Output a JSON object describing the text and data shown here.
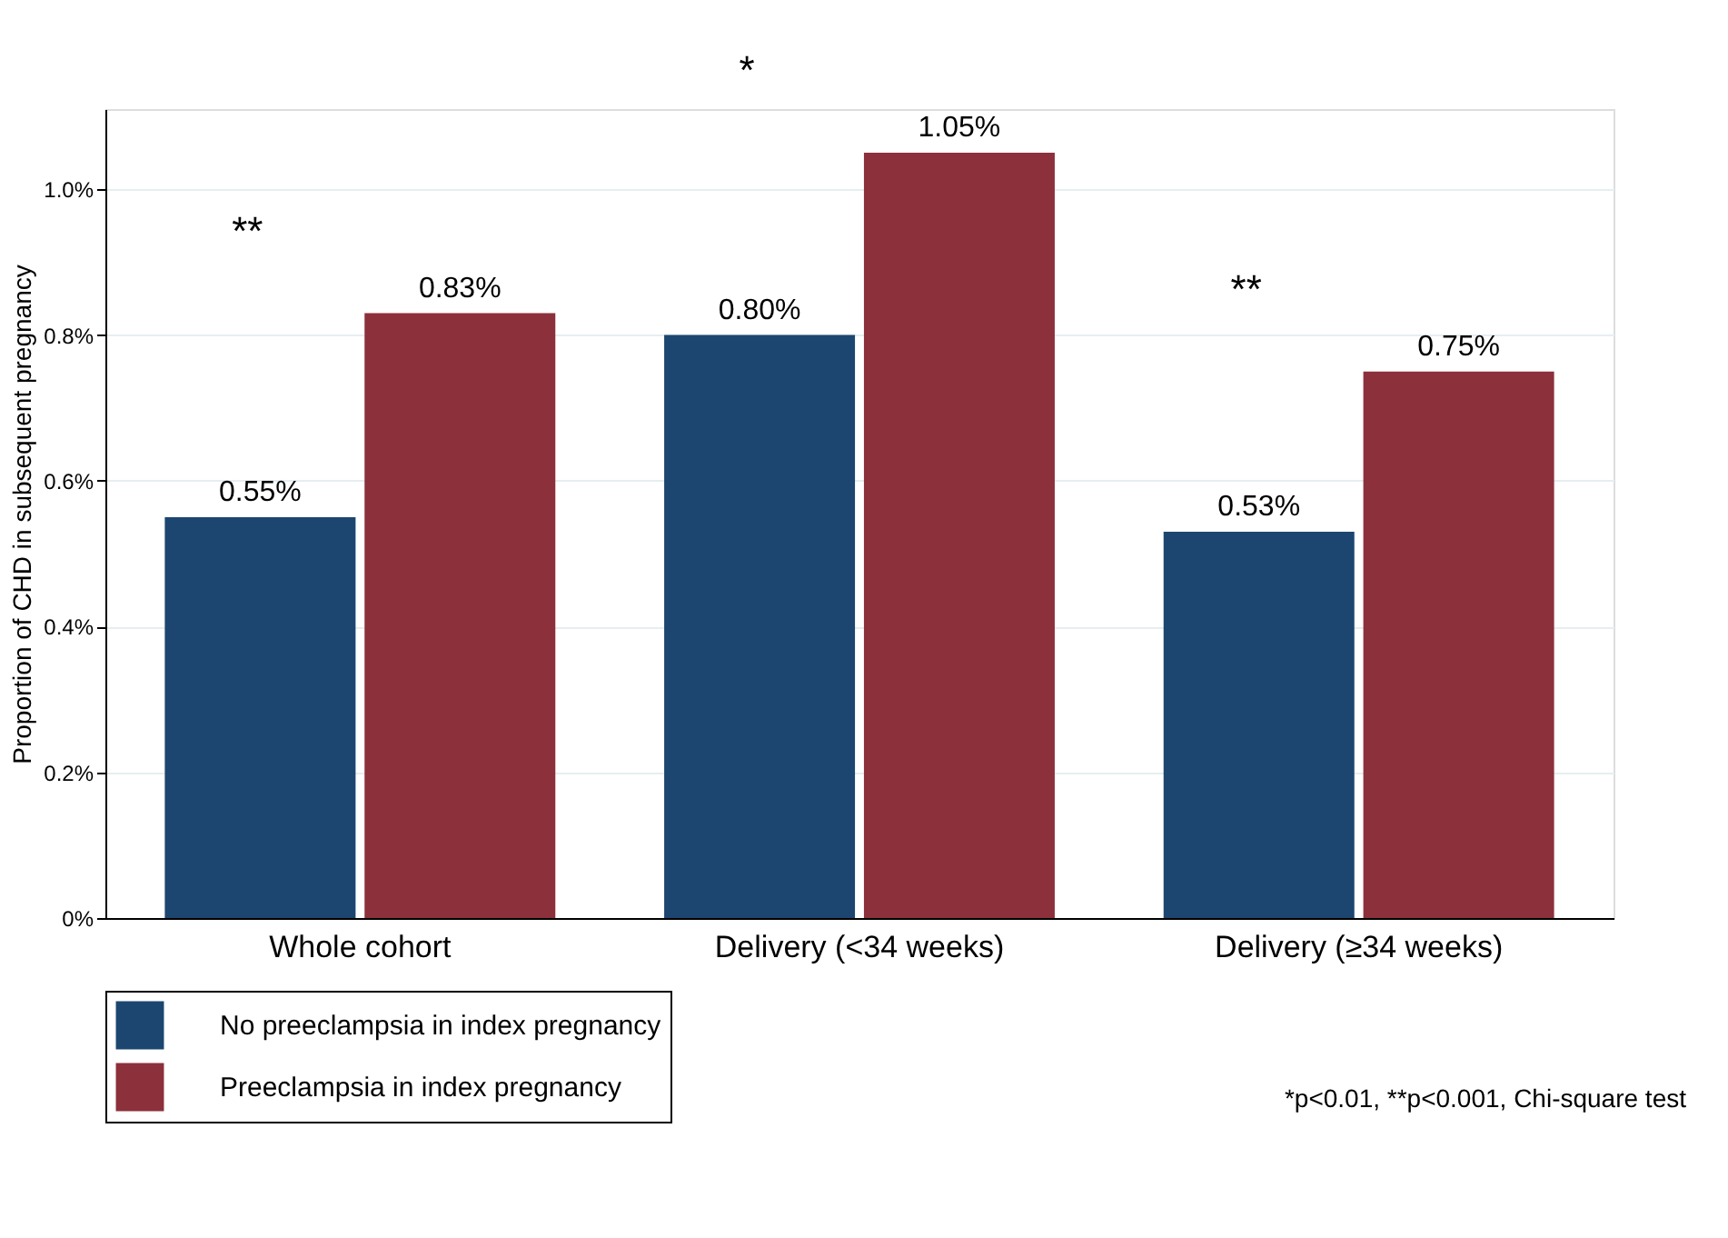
{
  "chart_data": {
    "type": "bar",
    "ylabel": "Proportion of CHD in subsequent pregnancy",
    "categories": [
      "Whole cohort",
      "Delivery (<34 weeks)",
      "Delivery (≥34 weeks)"
    ],
    "series": [
      {
        "name": "No preeclampsia in index pregnancy",
        "color": "#1c4670",
        "values": [
          0.55,
          0.8,
          0.53
        ],
        "value_labels": [
          "0.55%",
          "0.80%",
          "0.53%"
        ]
      },
      {
        "name": "Preeclampsia in index pregnancy",
        "color": "#8c303b",
        "values": [
          0.83,
          1.05,
          0.75
        ],
        "value_labels": [
          "0.83%",
          "1.05%",
          "0.75%"
        ]
      }
    ],
    "ylim": [
      0,
      1.11
    ],
    "yticks": [
      {
        "value": 0,
        "label": "0%"
      },
      {
        "value": 0.2,
        "label": "0.2%"
      },
      {
        "value": 0.4,
        "label": "0.4%"
      },
      {
        "value": 0.6,
        "label": "0.6%"
      },
      {
        "value": 0.8,
        "label": "0.8%"
      },
      {
        "value": 1.0,
        "label": "1.0%"
      }
    ],
    "grid": "y",
    "legend": "bottom left",
    "annotations": [
      "**",
      "*",
      "**",
      "*p<0.01, **p<0.001, Chi-square test"
    ]
  }
}
